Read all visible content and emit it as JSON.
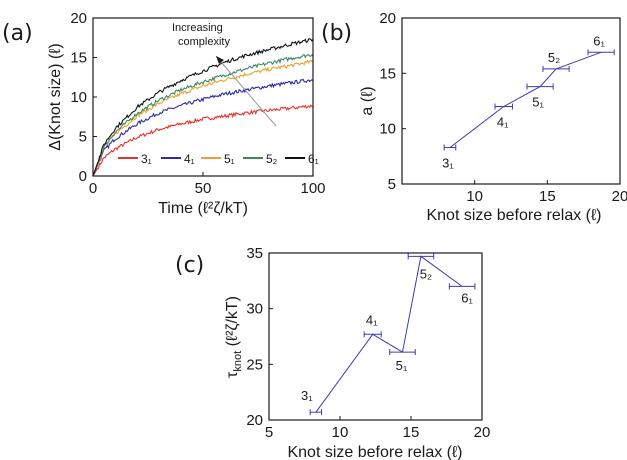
{
  "chart_data": [
    {
      "panel": "(a)",
      "type": "line",
      "xlabel": "Time (ℓ²ζ/kT)",
      "ylabel": "Δ(Knot size) (ℓ)",
      "xlim": [
        0,
        100
      ],
      "ylim": [
        0,
        20
      ],
      "xticks": [
        "0",
        "50",
        "100"
      ],
      "yticks": [
        "0",
        "5",
        "10",
        "15",
        "20"
      ],
      "legend_position": "bottom",
      "annotation": "Increasing complexity",
      "series": [
        {
          "name": "3₁",
          "color": "#e8322b",
          "x": [
            0,
            5,
            10,
            20,
            30,
            40,
            50,
            60,
            70,
            80,
            90,
            100
          ],
          "values": [
            0,
            2.3,
            3.4,
            4.9,
            5.9,
            6.6,
            7.2,
            7.6,
            8.0,
            8.3,
            8.6,
            8.9
          ]
        },
        {
          "name": "4₁",
          "color": "#2b2ba8",
          "x": [
            0,
            5,
            10,
            20,
            30,
            40,
            50,
            60,
            70,
            80,
            90,
            100
          ],
          "values": [
            0,
            3.2,
            4.7,
            6.6,
            8.0,
            8.9,
            9.7,
            10.4,
            10.9,
            11.4,
            11.8,
            12.2
          ]
        },
        {
          "name": "5₁",
          "color": "#f0a030",
          "x": [
            0,
            5,
            10,
            20,
            30,
            40,
            50,
            60,
            70,
            80,
            90,
            100
          ],
          "values": [
            0,
            3.6,
            5.3,
            7.6,
            9.2,
            10.4,
            11.4,
            12.2,
            12.9,
            13.5,
            14.0,
            14.5
          ]
        },
        {
          "name": "5₂",
          "color": "#3a8a5a",
          "x": [
            0,
            5,
            10,
            20,
            30,
            40,
            50,
            60,
            70,
            80,
            90,
            100
          ],
          "values": [
            0,
            3.7,
            5.5,
            7.9,
            9.6,
            10.9,
            11.9,
            12.8,
            13.6,
            14.3,
            14.9,
            15.4
          ]
        },
        {
          "name": "6₁",
          "color": "#111111",
          "x": [
            0,
            5,
            10,
            20,
            30,
            40,
            50,
            60,
            70,
            80,
            90,
            100
          ],
          "values": [
            0,
            4.0,
            6.0,
            8.7,
            10.6,
            12.1,
            13.3,
            14.4,
            15.3,
            16.0,
            16.7,
            17.3
          ]
        }
      ]
    },
    {
      "panel": "(b)",
      "type": "line",
      "xlabel": "Knot size before relax (ℓ)",
      "ylabel": "a (ℓ)",
      "xlim": [
        5,
        20
      ],
      "ylim": [
        5,
        20
      ],
      "xticks": [
        "10",
        "15",
        "20"
      ],
      "yticks": [
        "5",
        "10",
        "15",
        "20"
      ],
      "color": "#3b3bb3",
      "points": [
        {
          "label": "3₁",
          "x": 8.3,
          "y": 8.3,
          "xerr": 0.4
        },
        {
          "label": "4₁",
          "x": 12.0,
          "y": 12.0,
          "xerr": 0.6
        },
        {
          "label": "5₁",
          "x": 14.5,
          "y": 13.8,
          "xerr": 0.9
        },
        {
          "label": "5₂",
          "x": 15.6,
          "y": 15.4,
          "xerr": 0.9
        },
        {
          "label": "6₁",
          "x": 18.7,
          "y": 16.9,
          "xerr": 0.9
        }
      ]
    },
    {
      "panel": "(c)",
      "type": "line",
      "xlabel": "Knot size before relax (ℓ)",
      "ylabel": "τknot (ℓ²ζ/kT)",
      "xlim": [
        5,
        20
      ],
      "ylim": [
        20,
        35
      ],
      "xticks": [
        "5",
        "10",
        "15",
        "20"
      ],
      "yticks": [
        "20",
        "25",
        "30",
        "35"
      ],
      "color": "#3b3bb3",
      "points": [
        {
          "label": "3₁",
          "x": 8.3,
          "y": 20.7,
          "xerr": 0.4
        },
        {
          "label": "4₁",
          "x": 12.3,
          "y": 27.7,
          "xerr": 0.6
        },
        {
          "label": "5₁",
          "x": 14.4,
          "y": 26.1,
          "xerr": 0.9
        },
        {
          "label": "5₂",
          "x": 15.7,
          "y": 34.7,
          "xerr": 0.9
        },
        {
          "label": "6₁",
          "x": 18.6,
          "y": 32.0,
          "xerr": 0.9
        }
      ]
    }
  ]
}
